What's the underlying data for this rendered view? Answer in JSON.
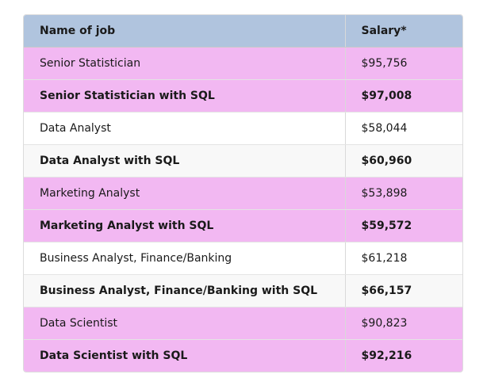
{
  "table": {
    "headers": [
      "Name of job",
      "Salary*"
    ],
    "rows": [
      {
        "job": "Senior Statistician",
        "salary": "$95,756",
        "bg": "#f2b8f2",
        "bold": false
      },
      {
        "job": "Senior Statistician with SQL",
        "salary": "$97,008",
        "bg": "#f2b8f2",
        "bold": true
      },
      {
        "job": "Data Analyst",
        "salary": "$58,044",
        "bg": "#ffffff",
        "bold": false
      },
      {
        "job": "Data Analyst with SQL",
        "salary": "$60,960",
        "bg": "#f8f8f8",
        "bold": true
      },
      {
        "job": "Marketing Analyst",
        "salary": "$53,898",
        "bg": "#f2b8f2",
        "bold": false
      },
      {
        "job": "Marketing Analyst with SQL",
        "salary": "$59,572",
        "bg": "#f2b8f2",
        "bold": true
      },
      {
        "job": "Business Analyst, Finance/Banking",
        "salary": "$61,218",
        "bg": "#ffffff",
        "bold": false
      },
      {
        "job": "Business Analyst, Finance/Banking with SQL",
        "salary": "$66,157",
        "bg": "#f8f8f8",
        "bold": true
      },
      {
        "job": "Data Scientist",
        "salary": "$90,823",
        "bg": "#f2b8f2",
        "bold": false
      },
      {
        "job": "Data Scientist with SQL",
        "salary": "$92,216",
        "bg": "#f2b8f2",
        "bold": true
      }
    ]
  },
  "colors": {
    "header_bg": "#b0c4de",
    "highlight_bg": "#f2b8f2",
    "alt_bg": "#f8f8f8"
  }
}
